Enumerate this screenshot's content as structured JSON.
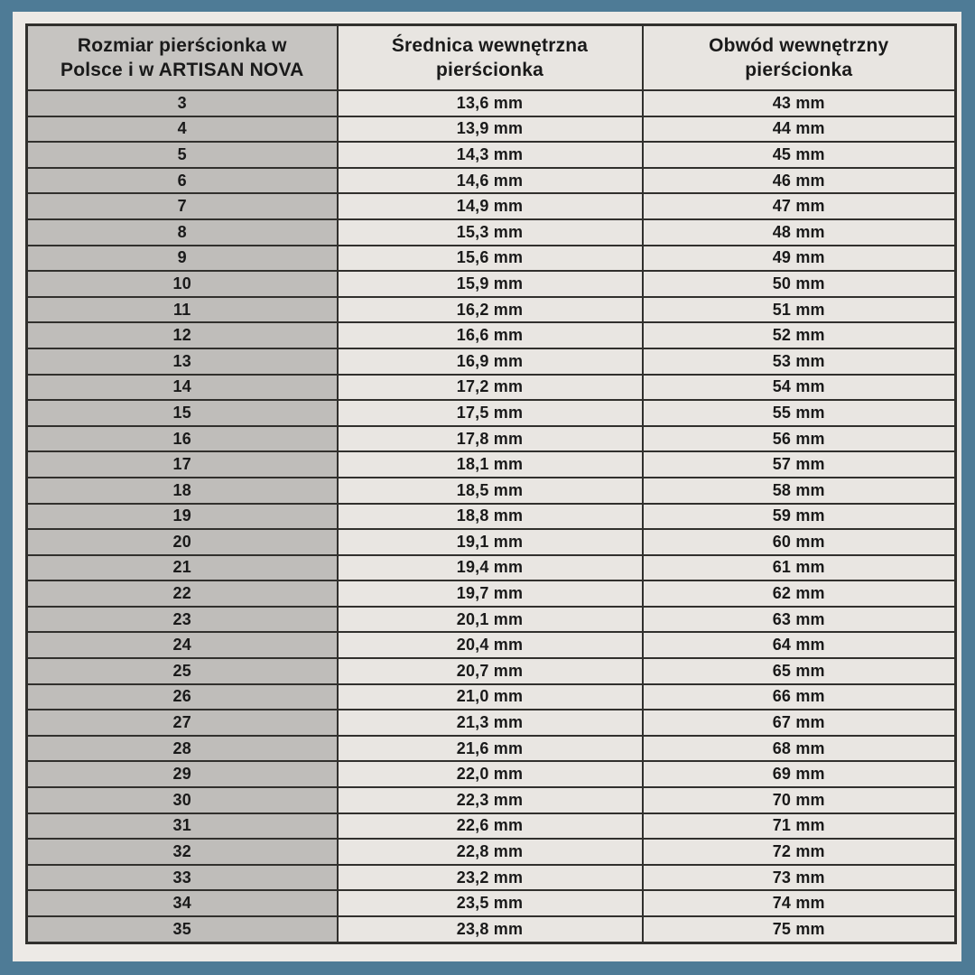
{
  "colors": {
    "frame_blue": "#4e7b96",
    "panel_background": "#edeae6",
    "header_gray_cell": "#c6c4c1",
    "size_column_gray": "#bfbdba",
    "light_cell": "#e9e6e2",
    "border_dark": "#31302d"
  },
  "table": {
    "headers": {
      "size": "Rozmiar pierścionka w\nPolsce i w ARTISAN NOVA",
      "diameter": "Średnica wewnętrzna\npierścionka",
      "circumference": "Obwód wewnętrzny\npierścionka"
    },
    "rows": [
      {
        "size": "3",
        "diameter": "13,6 mm",
        "circumference": "43 mm"
      },
      {
        "size": "4",
        "diameter": "13,9 mm",
        "circumference": "44 mm"
      },
      {
        "size": "5",
        "diameter": "14,3 mm",
        "circumference": "45 mm"
      },
      {
        "size": "6",
        "diameter": "14,6 mm",
        "circumference": "46 mm"
      },
      {
        "size": "7",
        "diameter": "14,9 mm",
        "circumference": "47 mm"
      },
      {
        "size": "8",
        "diameter": "15,3 mm",
        "circumference": "48 mm"
      },
      {
        "size": "9",
        "diameter": "15,6 mm",
        "circumference": "49 mm"
      },
      {
        "size": "10",
        "diameter": "15,9 mm",
        "circumference": "50 mm"
      },
      {
        "size": "11",
        "diameter": "16,2 mm",
        "circumference": "51 mm"
      },
      {
        "size": "12",
        "diameter": "16,6 mm",
        "circumference": "52 mm"
      },
      {
        "size": "13",
        "diameter": "16,9 mm",
        "circumference": "53 mm"
      },
      {
        "size": "14",
        "diameter": "17,2 mm",
        "circumference": "54 mm"
      },
      {
        "size": "15",
        "diameter": "17,5 mm",
        "circumference": "55 mm"
      },
      {
        "size": "16",
        "diameter": "17,8 mm",
        "circumference": "56 mm"
      },
      {
        "size": "17",
        "diameter": "18,1 mm",
        "circumference": "57 mm"
      },
      {
        "size": "18",
        "diameter": "18,5 mm",
        "circumference": "58 mm"
      },
      {
        "size": "19",
        "diameter": "18,8 mm",
        "circumference": "59 mm"
      },
      {
        "size": "20",
        "diameter": "19,1 mm",
        "circumference": "60 mm"
      },
      {
        "size": "21",
        "diameter": "19,4 mm",
        "circumference": "61 mm"
      },
      {
        "size": "22",
        "diameter": "19,7 mm",
        "circumference": "62 mm"
      },
      {
        "size": "23",
        "diameter": "20,1 mm",
        "circumference": "63 mm"
      },
      {
        "size": "24",
        "diameter": "20,4 mm",
        "circumference": "64 mm"
      },
      {
        "size": "25",
        "diameter": "20,7 mm",
        "circumference": "65 mm"
      },
      {
        "size": "26",
        "diameter": "21,0 mm",
        "circumference": "66 mm"
      },
      {
        "size": "27",
        "diameter": "21,3 mm",
        "circumference": "67 mm"
      },
      {
        "size": "28",
        "diameter": "21,6 mm",
        "circumference": "68 mm"
      },
      {
        "size": "29",
        "diameter": "22,0 mm",
        "circumference": "69 mm"
      },
      {
        "size": "30",
        "diameter": "22,3 mm",
        "circumference": "70 mm"
      },
      {
        "size": "31",
        "diameter": "22,6 mm",
        "circumference": "71 mm"
      },
      {
        "size": "32",
        "diameter": "22,8 mm",
        "circumference": "72 mm"
      },
      {
        "size": "33",
        "diameter": "23,2 mm",
        "circumference": "73 mm"
      },
      {
        "size": "34",
        "diameter": "23,5 mm",
        "circumference": "74 mm"
      },
      {
        "size": "35",
        "diameter": "23,8 mm",
        "circumference": "75 mm"
      }
    ]
  }
}
